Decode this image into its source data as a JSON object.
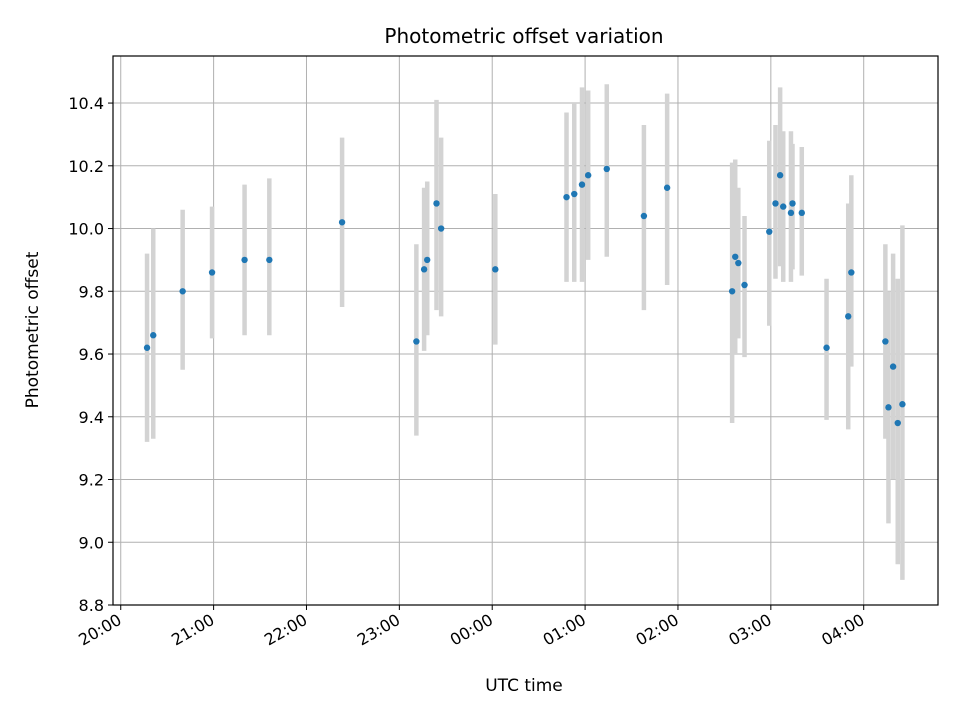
{
  "chart_data": {
    "type": "scatter",
    "title": "Photometric offset variation",
    "xlabel": "UTC time",
    "ylabel": "Photometric offset",
    "x_axis": {
      "type": "time",
      "start": "2024-01-01T20:00",
      "min": "2024-01-01T19:55",
      "max": "2024-01-02T04:48",
      "ticks": [
        {
          "t": "2024-01-01T20:00",
          "label": "20:00"
        },
        {
          "t": "2024-01-01T21:00",
          "label": "21:00"
        },
        {
          "t": "2024-01-01T22:00",
          "label": "22:00"
        },
        {
          "t": "2024-01-01T23:00",
          "label": "23:00"
        },
        {
          "t": "2024-01-02T00:00",
          "label": "00:00"
        },
        {
          "t": "2024-01-02T01:00",
          "label": "01:00"
        },
        {
          "t": "2024-01-02T02:00",
          "label": "02:00"
        },
        {
          "t": "2024-01-02T03:00",
          "label": "03:00"
        },
        {
          "t": "2024-01-02T04:00",
          "label": "04:00"
        }
      ]
    },
    "ylim": [
      8.8,
      10.55
    ],
    "yticks": [
      {
        "v": 8.8,
        "label": "8.8"
      },
      {
        "v": 9.0,
        "label": "9.0"
      },
      {
        "v": 9.2,
        "label": "9.2"
      },
      {
        "v": 9.4,
        "label": "9.4"
      },
      {
        "v": 9.6,
        "label": "9.6"
      },
      {
        "v": 9.8,
        "label": "9.8"
      },
      {
        "v": 10.0,
        "label": "10.0"
      },
      {
        "v": 10.2,
        "label": "10.2"
      },
      {
        "v": 10.4,
        "label": "10.4"
      }
    ],
    "grid": true,
    "colors": {
      "point": "#1f77b4",
      "errorbar": "#d3d3d3",
      "grid": "#b0b0b0"
    },
    "points": [
      {
        "t": "2024-01-01T20:17",
        "y": 9.62,
        "lo": 9.32,
        "hi": 9.92
      },
      {
        "t": "2024-01-01T20:21",
        "y": 9.66,
        "lo": 9.33,
        "hi": 10.0
      },
      {
        "t": "2024-01-01T20:40",
        "y": 9.8,
        "lo": 9.55,
        "hi": 10.06
      },
      {
        "t": "2024-01-01T20:59",
        "y": 9.86,
        "lo": 9.65,
        "hi": 10.07
      },
      {
        "t": "2024-01-01T21:20",
        "y": 9.9,
        "lo": 9.66,
        "hi": 10.14
      },
      {
        "t": "2024-01-01T21:36",
        "y": 9.9,
        "lo": 9.66,
        "hi": 10.16
      },
      {
        "t": "2024-01-01T22:23",
        "y": 10.02,
        "lo": 9.75,
        "hi": 10.29
      },
      {
        "t": "2024-01-01T23:11",
        "y": 9.64,
        "lo": 9.34,
        "hi": 9.95
      },
      {
        "t": "2024-01-01T23:16",
        "y": 9.87,
        "lo": 9.61,
        "hi": 10.13
      },
      {
        "t": "2024-01-01T23:18",
        "y": 9.9,
        "lo": 9.66,
        "hi": 10.15
      },
      {
        "t": "2024-01-01T23:24",
        "y": 10.08,
        "lo": 9.74,
        "hi": 10.41
      },
      {
        "t": "2024-01-01T23:27",
        "y": 10.0,
        "lo": 9.72,
        "hi": 10.29
      },
      {
        "t": "2024-01-02T00:02",
        "y": 9.87,
        "lo": 9.63,
        "hi": 10.11
      },
      {
        "t": "2024-01-02T00:48",
        "y": 10.1,
        "lo": 9.83,
        "hi": 10.37
      },
      {
        "t": "2024-01-02T00:53",
        "y": 10.11,
        "lo": 9.83,
        "hi": 10.4
      },
      {
        "t": "2024-01-02T00:58",
        "y": 10.14,
        "lo": 9.83,
        "hi": 10.45
      },
      {
        "t": "2024-01-02T01:02",
        "y": 10.17,
        "lo": 9.9,
        "hi": 10.44
      },
      {
        "t": "2024-01-02T01:14",
        "y": 10.19,
        "lo": 9.91,
        "hi": 10.46
      },
      {
        "t": "2024-01-02T01:38",
        "y": 10.04,
        "lo": 9.74,
        "hi": 10.33
      },
      {
        "t": "2024-01-02T01:53",
        "y": 10.13,
        "lo": 9.82,
        "hi": 10.43
      },
      {
        "t": "2024-01-02T02:35",
        "y": 9.8,
        "lo": 9.38,
        "hi": 10.21
      },
      {
        "t": "2024-01-02T02:37",
        "y": 9.91,
        "lo": 9.6,
        "hi": 10.22
      },
      {
        "t": "2024-01-02T02:39",
        "y": 9.89,
        "lo": 9.65,
        "hi": 10.13
      },
      {
        "t": "2024-01-02T02:43",
        "y": 9.82,
        "lo": 9.59,
        "hi": 10.04
      },
      {
        "t": "2024-01-02T02:59",
        "y": 9.99,
        "lo": 9.69,
        "hi": 10.28
      },
      {
        "t": "2024-01-02T03:03",
        "y": 10.08,
        "lo": 9.84,
        "hi": 10.33
      },
      {
        "t": "2024-01-02T03:06",
        "y": 10.17,
        "lo": 9.88,
        "hi": 10.45
      },
      {
        "t": "2024-01-02T03:08",
        "y": 10.07,
        "lo": 9.83,
        "hi": 10.31
      },
      {
        "t": "2024-01-02T03:13",
        "y": 10.05,
        "lo": 9.83,
        "hi": 10.31
      },
      {
        "t": "2024-01-02T03:14",
        "y": 10.08,
        "lo": 9.87,
        "hi": 10.27
      },
      {
        "t": "2024-01-02T03:20",
        "y": 10.05,
        "lo": 9.85,
        "hi": 10.26
      },
      {
        "t": "2024-01-02T03:36",
        "y": 9.62,
        "lo": 9.39,
        "hi": 9.84
      },
      {
        "t": "2024-01-02T03:50",
        "y": 9.72,
        "lo": 9.36,
        "hi": 10.08
      },
      {
        "t": "2024-01-02T03:52",
        "y": 9.86,
        "lo": 9.56,
        "hi": 10.17
      },
      {
        "t": "2024-01-02T04:14",
        "y": 9.64,
        "lo": 9.33,
        "hi": 9.95
      },
      {
        "t": "2024-01-02T04:16",
        "y": 9.43,
        "lo": 9.06,
        "hi": 9.8
      },
      {
        "t": "2024-01-02T04:19",
        "y": 9.56,
        "lo": 9.2,
        "hi": 9.92
      },
      {
        "t": "2024-01-02T04:22",
        "y": 9.38,
        "lo": 8.93,
        "hi": 9.84
      },
      {
        "t": "2024-01-02T04:25",
        "y": 9.44,
        "lo": 8.88,
        "hi": 10.01
      }
    ]
  }
}
